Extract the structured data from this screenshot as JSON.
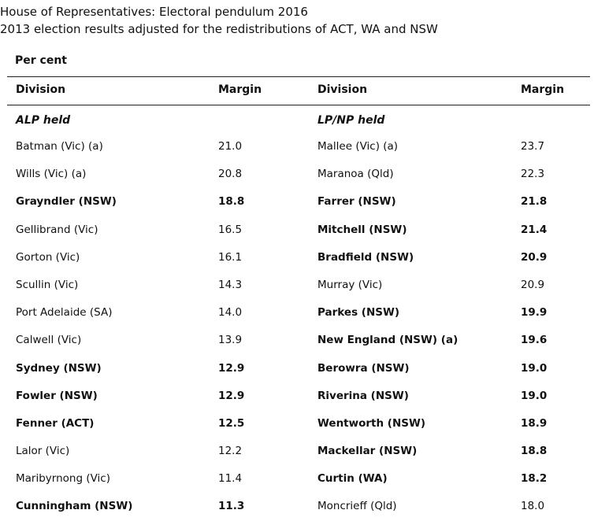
{
  "title": {
    "line1": "House of Representatives: Electoral pendulum 2016",
    "line2": "2013 election results adjusted for the redistributions of ACT, WA and NSW"
  },
  "unit_label": "Per cent",
  "headers": {
    "division": "Division",
    "margin": "Margin"
  },
  "sections": {
    "left": "ALP held",
    "right": "LP/NP held"
  },
  "rows": [
    {
      "left_div": "Batman (Vic) (a)",
      "left_margin": "21.0",
      "left_bold": false,
      "right_div": "Mallee (Vic) (a)",
      "right_margin": "23.7",
      "right_bold": false
    },
    {
      "left_div": "Wills (Vic) (a)",
      "left_margin": "20.8",
      "left_bold": false,
      "right_div": "Maranoa (Qld)",
      "right_margin": "22.3",
      "right_bold": false
    },
    {
      "left_div": "Grayndler (NSW)",
      "left_margin": "18.8",
      "left_bold": true,
      "right_div": "Farrer (NSW)",
      "right_margin": "21.8",
      "right_bold": true
    },
    {
      "left_div": "Gellibrand (Vic)",
      "left_margin": "16.5",
      "left_bold": false,
      "right_div": "Mitchell (NSW)",
      "right_margin": "21.4",
      "right_bold": true
    },
    {
      "left_div": "Gorton (Vic)",
      "left_margin": "16.1",
      "left_bold": false,
      "right_div": "Bradfield (NSW)",
      "right_margin": "20.9",
      "right_bold": true
    },
    {
      "left_div": "Scullin (Vic)",
      "left_margin": "14.3",
      "left_bold": false,
      "right_div": "Murray (Vic)",
      "right_margin": "20.9",
      "right_bold": false
    },
    {
      "left_div": "Port Adelaide (SA)",
      "left_margin": "14.0",
      "left_bold": false,
      "right_div": "Parkes (NSW)",
      "right_margin": "19.9",
      "right_bold": true
    },
    {
      "left_div": "Calwell (Vic)",
      "left_margin": "13.9",
      "left_bold": false,
      "right_div": "New England (NSW) (a)",
      "right_margin": "19.6",
      "right_bold": true
    },
    {
      "left_div": "Sydney (NSW)",
      "left_margin": "12.9",
      "left_bold": true,
      "right_div": "Berowra (NSW)",
      "right_margin": "19.0",
      "right_bold": true
    },
    {
      "left_div": "Fowler (NSW)",
      "left_margin": "12.9",
      "left_bold": true,
      "right_div": "Riverina (NSW)",
      "right_margin": "19.0",
      "right_bold": true
    },
    {
      "left_div": "Fenner (ACT)",
      "left_margin": "12.5",
      "left_bold": true,
      "right_div": "Wentworth (NSW)",
      "right_margin": "18.9",
      "right_bold": true
    },
    {
      "left_div": "Lalor (Vic)",
      "left_margin": "12.2",
      "left_bold": false,
      "right_div": "Mackellar (NSW)",
      "right_margin": "18.8",
      "right_bold": true
    },
    {
      "left_div": "Maribyrnong (Vic)",
      "left_margin": "11.4",
      "left_bold": false,
      "right_div": "Curtin (WA)",
      "right_margin": "18.2",
      "right_bold": true
    },
    {
      "left_div": "Cunningham (NSW)",
      "left_margin": "11.3",
      "left_bold": true,
      "right_div": "Moncrieff (Qld)",
      "right_margin": "18.0",
      "right_bold": false
    }
  ]
}
